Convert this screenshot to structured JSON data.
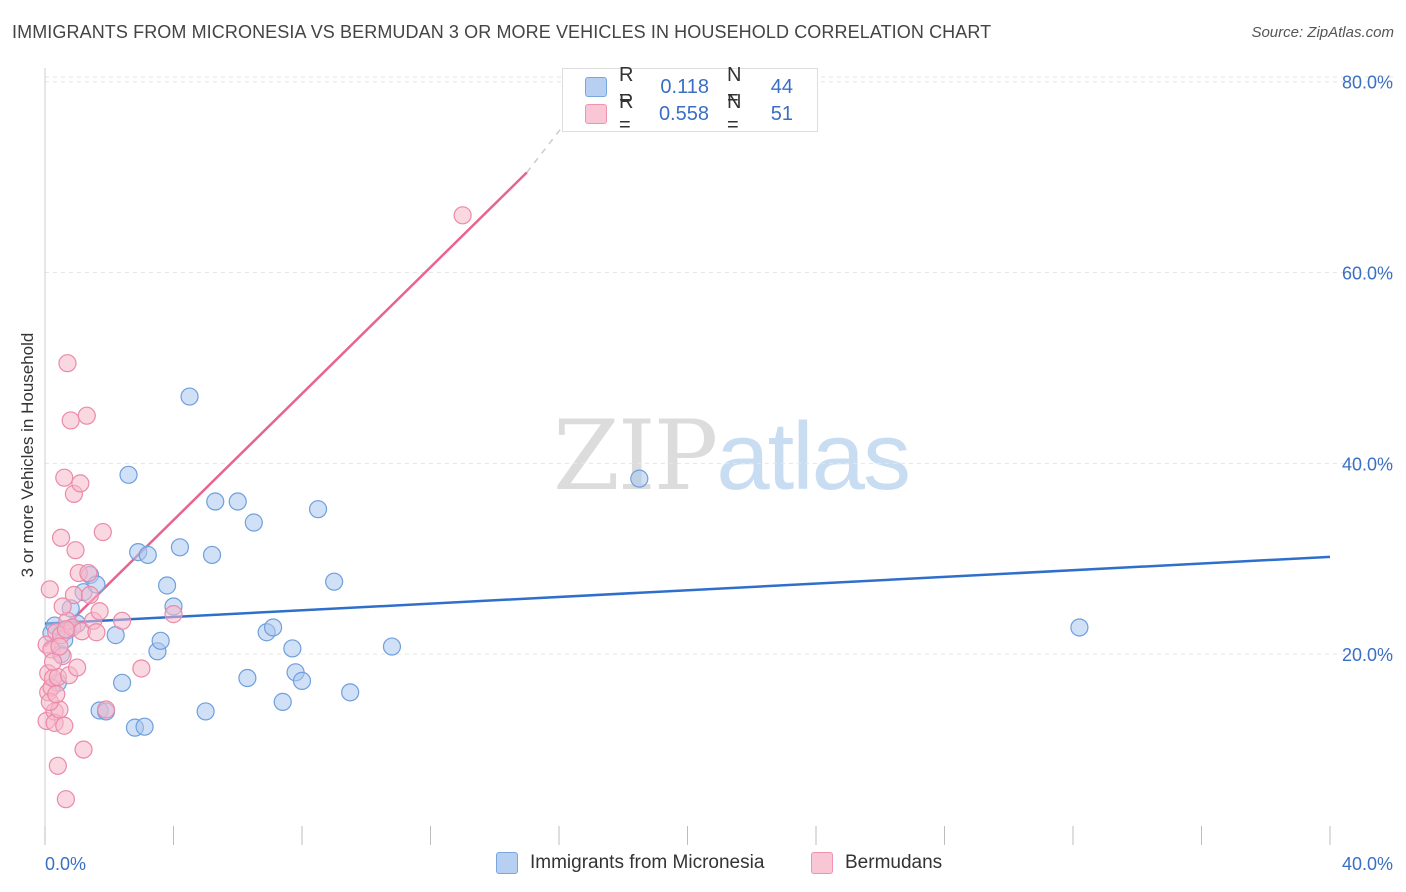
{
  "title": "IMMIGRANTS FROM MICRONESIA VS BERMUDAN 3 OR MORE VEHICLES IN HOUSEHOLD CORRELATION CHART",
  "source": "Source: ZipAtlas.com",
  "watermark": {
    "zip": "ZIP",
    "atlas": "atlas"
  },
  "legend": {
    "rows": [
      {
        "r_label": "R =",
        "r_value": "0.118",
        "n_label": "N =",
        "n_value": "44"
      },
      {
        "r_label": "R =",
        "r_value": "0.558",
        "n_label": "N =",
        "n_value": "51"
      }
    ]
  },
  "colors": {
    "blue_fill": "#a9c6ef",
    "blue_stroke": "#6f9fdc",
    "blue_line": "#2f6fcc",
    "pink_fill": "#f6b8cb",
    "pink_stroke": "#ec89a8",
    "pink_line": "#e8648c",
    "tick_label": "#3a6fc4",
    "grid": "#e6e6e6"
  },
  "chart_data": {
    "type": "scatter",
    "title": "IMMIGRANTS FROM MICRONESIA VS BERMUDAN 3 OR MORE VEHICLES IN HOUSEHOLD CORRELATION CHART",
    "xlabel": "",
    "ylabel": "3 or more Vehicles in Household",
    "xlim": [
      0,
      40
    ],
    "ylim": [
      0,
      82
    ],
    "x_tick_labels": [
      "0.0%",
      "40.0%"
    ],
    "y_ticks": [
      20,
      40,
      60,
      80
    ],
    "y_tick_labels": [
      "20.0%",
      "40.0%",
      "60.0%",
      "80.0%"
    ],
    "grid": true,
    "legend_position": "bottom",
    "series": [
      {
        "name": "Immigrants from Micronesia",
        "color": "#a9c6ef",
        "points": [
          [
            0.2,
            22.2
          ],
          [
            0.3,
            23.0
          ],
          [
            0.5,
            20.0
          ],
          [
            0.7,
            22.5
          ],
          [
            0.8,
            24.8
          ],
          [
            1.0,
            23.2
          ],
          [
            1.2,
            26.5
          ],
          [
            1.4,
            28.3
          ],
          [
            1.6,
            27.3
          ],
          [
            1.7,
            14.1
          ],
          [
            1.9,
            14.0
          ],
          [
            2.2,
            22.0
          ],
          [
            2.4,
            17.0
          ],
          [
            2.6,
            38.8
          ],
          [
            2.8,
            12.3
          ],
          [
            2.9,
            30.7
          ],
          [
            3.1,
            12.4
          ],
          [
            3.2,
            30.4
          ],
          [
            3.5,
            20.3
          ],
          [
            3.6,
            21.4
          ],
          [
            3.8,
            27.2
          ],
          [
            4.0,
            25.0
          ],
          [
            4.2,
            31.2
          ],
          [
            4.5,
            47.0
          ],
          [
            5.0,
            14.0
          ],
          [
            5.2,
            30.4
          ],
          [
            5.3,
            36.0
          ],
          [
            6.0,
            36.0
          ],
          [
            6.3,
            17.5
          ],
          [
            6.5,
            33.8
          ],
          [
            6.9,
            22.3
          ],
          [
            7.1,
            22.8
          ],
          [
            7.4,
            15.0
          ],
          [
            7.7,
            20.6
          ],
          [
            7.8,
            18.1
          ],
          [
            8.0,
            17.2
          ],
          [
            8.5,
            35.2
          ],
          [
            9.0,
            27.6
          ],
          [
            9.5,
            16.0
          ],
          [
            10.8,
            20.8
          ],
          [
            18.5,
            38.4
          ],
          [
            32.2,
            22.8
          ],
          [
            0.4,
            17.0
          ],
          [
            0.6,
            21.5
          ]
        ]
      },
      {
        "name": "Bermudans",
        "color": "#f6b8cb",
        "points": [
          [
            0.05,
            21.0
          ],
          [
            0.05,
            13.0
          ],
          [
            0.1,
            18.0
          ],
          [
            0.1,
            16.0
          ],
          [
            0.15,
            26.8
          ],
          [
            0.2,
            20.5
          ],
          [
            0.2,
            16.5
          ],
          [
            0.25,
            17.5
          ],
          [
            0.3,
            14.0
          ],
          [
            0.3,
            12.8
          ],
          [
            0.35,
            22.3
          ],
          [
            0.4,
            17.6
          ],
          [
            0.4,
            8.3
          ],
          [
            0.45,
            14.2
          ],
          [
            0.5,
            22.0
          ],
          [
            0.5,
            32.2
          ],
          [
            0.55,
            19.8
          ],
          [
            0.6,
            12.5
          ],
          [
            0.6,
            38.5
          ],
          [
            0.65,
            4.8
          ],
          [
            0.7,
            50.5
          ],
          [
            0.7,
            23.5
          ],
          [
            0.75,
            17.8
          ],
          [
            0.8,
            44.5
          ],
          [
            0.85,
            22.8
          ],
          [
            0.9,
            36.8
          ],
          [
            0.9,
            26.2
          ],
          [
            0.95,
            30.9
          ],
          [
            1.0,
            18.6
          ],
          [
            1.05,
            28.5
          ],
          [
            1.1,
            37.9
          ],
          [
            1.15,
            22.4
          ],
          [
            1.2,
            10.0
          ],
          [
            1.3,
            45.0
          ],
          [
            1.35,
            28.5
          ],
          [
            1.4,
            26.2
          ],
          [
            1.5,
            23.5
          ],
          [
            1.6,
            22.3
          ],
          [
            1.7,
            24.5
          ],
          [
            1.8,
            32.8
          ],
          [
            1.9,
            14.2
          ],
          [
            2.4,
            23.5
          ],
          [
            3.0,
            18.5
          ],
          [
            4.0,
            24.2
          ],
          [
            13.0,
            66.0
          ],
          [
            0.15,
            15.0
          ],
          [
            0.25,
            19.2
          ],
          [
            0.35,
            15.8
          ],
          [
            0.45,
            20.8
          ],
          [
            0.55,
            25.0
          ],
          [
            0.65,
            22.6
          ]
        ]
      }
    ],
    "trendlines": [
      {
        "series": "Immigrants from Micronesia",
        "x": [
          0,
          40
        ],
        "y": [
          23.2,
          30.2
        ]
      },
      {
        "series": "Bermudans",
        "x": [
          0,
          15
        ],
        "y": [
          20.8,
          70.5
        ],
        "dashed_to": [
          16.5,
          77.0
        ]
      }
    ]
  },
  "bottom_legend": [
    "Immigrants from Micronesia",
    "Bermudans"
  ]
}
